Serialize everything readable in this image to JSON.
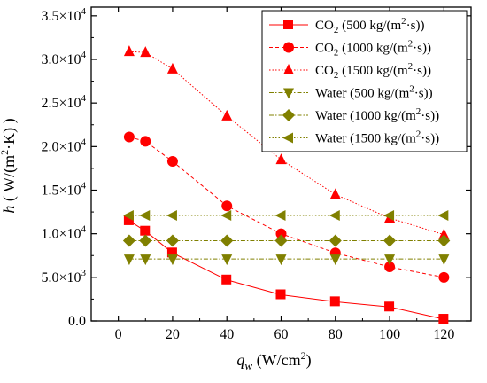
{
  "chart_data": {
    "type": "line",
    "xlabel": {
      "main": "q",
      "sub": "w",
      "unit": " (W/cm",
      "sup": "2",
      "tail": ")"
    },
    "ylabel": {
      "main": "h",
      "unit": " ( W/(m",
      "sup": "2",
      "tail": "·K) )"
    },
    "xlim": [
      -10,
      130
    ],
    "ylim": [
      0,
      36000
    ],
    "xticks": [
      0,
      20,
      40,
      60,
      80,
      100,
      120
    ],
    "xtick_labels": [
      "0",
      "20",
      "40",
      "60",
      "80",
      "100",
      "120"
    ],
    "yticks": [
      0,
      5000,
      10000,
      15000,
      20000,
      25000,
      30000,
      35000
    ],
    "ytick_labels": [
      {
        "base": "0.0",
        "exp": ""
      },
      {
        "base": "5.0×10",
        "exp": "3"
      },
      {
        "base": "1.0×10",
        "exp": "4"
      },
      {
        "base": "1.5×10",
        "exp": "4"
      },
      {
        "base": "2.0×10",
        "exp": "4"
      },
      {
        "base": "2.5×10",
        "exp": "4"
      },
      {
        "base": "3.0×10",
        "exp": "4"
      },
      {
        "base": "3.5×10",
        "exp": "4"
      }
    ],
    "grid": false,
    "legend_position": "top-right",
    "series": [
      {
        "name": "CO2 (500 kg/(m2·s))",
        "label": {
          "pre": "CO",
          "sub": "2",
          "mid": " (500 kg/(m",
          "sup": "2",
          "post": "·s))"
        },
        "color": "#ff0000",
        "marker": "square",
        "dash": "solid",
        "x": [
          4,
          10,
          20,
          40,
          60,
          80,
          100,
          120
        ],
        "y": [
          11500,
          10300,
          7800,
          4700,
          3000,
          2200,
          1600,
          200
        ]
      },
      {
        "name": "CO2 (1000 kg/(m2·s))",
        "label": {
          "pre": "CO",
          "sub": "2",
          "mid": " (1000 kg/(m",
          "sup": "2",
          "post": "·s))"
        },
        "color": "#ff0000",
        "marker": "circle",
        "dash": "dashed",
        "x": [
          4,
          10,
          20,
          40,
          60,
          80,
          100,
          120
        ],
        "y": [
          21100,
          20600,
          18300,
          13200,
          10000,
          7800,
          6200,
          5000
        ]
      },
      {
        "name": "CO2 (1500 kg/(m2·s))",
        "label": {
          "pre": "CO",
          "sub": "2",
          "mid": " (1500 kg/(m",
          "sup": "2",
          "post": "·s))"
        },
        "color": "#ff0000",
        "marker": "triangle-up",
        "dash": "dotted",
        "x": [
          4,
          10,
          20,
          40,
          60,
          80,
          100,
          120
        ],
        "y": [
          30900,
          30800,
          28900,
          23500,
          18500,
          14500,
          11800,
          9900
        ]
      },
      {
        "name": "Water (500 kg/(m2·s))",
        "label": {
          "pre": "Water (500 kg/(m",
          "sub": "",
          "mid": "",
          "sup": "2",
          "post": "·s))"
        },
        "color": "#808000",
        "marker": "triangle-down",
        "dash": "dash-dot",
        "x": [
          4,
          10,
          20,
          40,
          60,
          80,
          100,
          120
        ],
        "y": [
          7100,
          7100,
          7100,
          7100,
          7100,
          7100,
          7100,
          7100
        ]
      },
      {
        "name": "Water (1000 kg/(m2·s))",
        "label": {
          "pre": "Water (1000 kg/(m",
          "sub": "",
          "mid": "",
          "sup": "2",
          "post": "·s))"
        },
        "color": "#808000",
        "marker": "diamond",
        "dash": "dash-dot",
        "x": [
          4,
          10,
          20,
          40,
          60,
          80,
          100,
          120
        ],
        "y": [
          9200,
          9200,
          9200,
          9200,
          9200,
          9200,
          9200,
          9200
        ]
      },
      {
        "name": "Water (1500 kg/(m2·s))",
        "label": {
          "pre": "Water (1500 kg/(m",
          "sub": "",
          "mid": "",
          "sup": "2",
          "post": "·s))"
        },
        "color": "#808000",
        "marker": "triangle-left",
        "dash": "dotted",
        "x": [
          4,
          10,
          20,
          40,
          60,
          80,
          100,
          120
        ],
        "y": [
          12100,
          12100,
          12100,
          12100,
          12100,
          12100,
          12100,
          12100
        ]
      }
    ]
  }
}
